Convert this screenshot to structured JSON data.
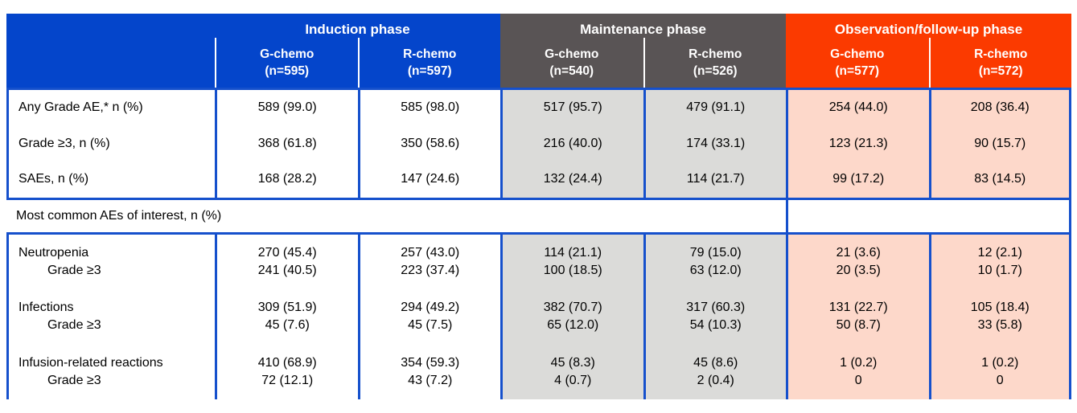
{
  "colors": {
    "header_blue": "#0445CB",
    "header_gray": "#595455",
    "header_red": "#FB3A00",
    "cell_gray": "#DBDBD9",
    "cell_pink": "#FDD8CA",
    "grid_blue": "#1550CC"
  },
  "header": {
    "phases": [
      {
        "label": "Induction phase",
        "cols": [
          {
            "arm": "G-chemo",
            "n": "(n=595)"
          },
          {
            "arm": "R-chemo",
            "n": "(n=597)"
          }
        ]
      },
      {
        "label": "Maintenance phase",
        "cols": [
          {
            "arm": "G-chemo",
            "n": "(n=540)"
          },
          {
            "arm": "R-chemo",
            "n": "(n=526)"
          }
        ]
      },
      {
        "label": "Observation/follow-up phase",
        "cols": [
          {
            "arm": "G-chemo",
            "n": "(n=577)"
          },
          {
            "arm": "R-chemo",
            "n": "(n=572)"
          }
        ]
      }
    ]
  },
  "summary_rows": [
    {
      "label": "Any Grade AE,* n (%)",
      "values": [
        "589 (99.0)",
        "585 (98.0)",
        "517 (95.7)",
        "479 (91.1)",
        "254 (44.0)",
        "208 (36.4)"
      ]
    },
    {
      "label": "Grade ≥3, n (%)",
      "values": [
        "368 (61.8)",
        "350 (58.6)",
        "216 (40.0)",
        "174 (33.1)",
        "123 (21.3)",
        "90 (15.7)"
      ]
    },
    {
      "label": "SAEs, n (%)",
      "values": [
        "168 (28.2)",
        "147 (24.6)",
        "132 (24.4)",
        "114 (21.7)",
        "99 (17.2)",
        "83 (14.5)"
      ]
    }
  ],
  "section_header": "Most common AEs of interest, n (%)",
  "ae_rows": [
    {
      "label": "Neutropenia",
      "sublabel": "Grade ≥3",
      "values": [
        "270 (45.4)",
        "257 (43.0)",
        "114 (21.1)",
        "79 (15.0)",
        "21 (3.6)",
        "12 (2.1)"
      ],
      "sub_values": [
        "241 (40.5)",
        "223 (37.4)",
        "100 (18.5)",
        "63 (12.0)",
        "20 (3.5)",
        "10 (1.7)"
      ]
    },
    {
      "label": "Infections",
      "sublabel": "Grade ≥3",
      "values": [
        "309 (51.9)",
        "294 (49.2)",
        "382 (70.7)",
        "317 (60.3)",
        "131 (22.7)",
        "105 (18.4)"
      ],
      "sub_values": [
        "45 (7.6)",
        "45 (7.5)",
        "65 (12.0)",
        "54 (10.3)",
        "50 (8.7)",
        "33 (5.8)"
      ]
    },
    {
      "label": "Infusion-related reactions",
      "sublabel": "Grade ≥3",
      "values": [
        "410 (68.9)",
        "354 (59.3)",
        "45 (8.3)",
        "45 (8.6)",
        "1 (0.2)",
        "1 (0.2)"
      ],
      "sub_values": [
        "72 (12.1)",
        "43 (7.2)",
        "4 (0.7)",
        "2 (0.4)",
        "0",
        "0"
      ]
    }
  ]
}
